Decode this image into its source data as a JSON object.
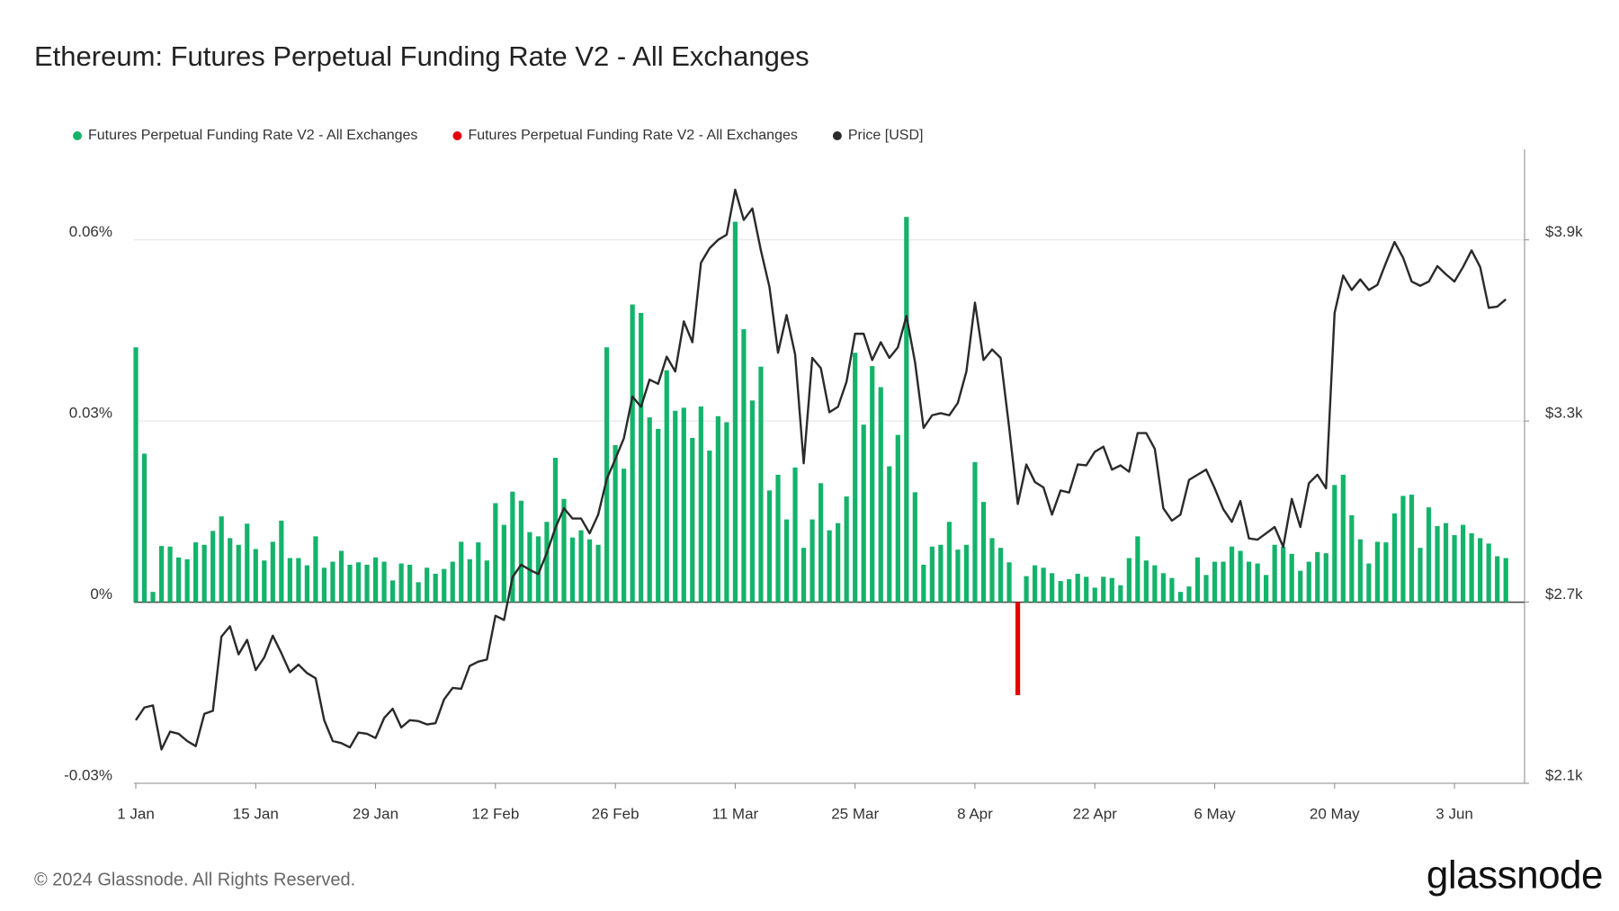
{
  "chart_data": {
    "type": "bar",
    "title": "Ethereum: Futures Perpetual Funding Rate V2 - All Exchanges",
    "categories": [
      "1 Jan",
      null,
      null,
      null,
      null,
      null,
      null,
      null,
      null,
      null,
      null,
      null,
      null,
      null,
      "15 Jan",
      null,
      null,
      null,
      null,
      null,
      null,
      null,
      null,
      null,
      null,
      null,
      null,
      null,
      "29 Jan",
      null,
      null,
      null,
      null,
      null,
      null,
      null,
      null,
      null,
      null,
      null,
      null,
      null,
      "12 Feb",
      null,
      null,
      null,
      null,
      null,
      null,
      null,
      null,
      null,
      null,
      null,
      null,
      null,
      "26 Feb",
      null,
      null,
      null,
      null,
      null,
      null,
      null,
      null,
      null,
      null,
      null,
      null,
      null,
      "11 Mar",
      null,
      null,
      null,
      null,
      null,
      null,
      null,
      null,
      null,
      null,
      null,
      null,
      null,
      "25 Mar",
      null,
      null,
      null,
      null,
      null,
      null,
      null,
      null,
      null,
      null,
      null,
      null,
      null,
      "8 Apr",
      null,
      null,
      null,
      null,
      null,
      null,
      null,
      null,
      null,
      null,
      null,
      null,
      null,
      "22 Apr",
      null,
      null,
      null,
      null,
      null,
      null,
      null,
      null,
      null,
      null,
      null,
      null,
      null,
      "6 May",
      null,
      null,
      null,
      null,
      null,
      null,
      null,
      null,
      null,
      null,
      null,
      null,
      null,
      "20 May",
      null,
      null,
      null,
      null,
      null,
      null,
      null,
      null,
      null,
      null,
      null,
      null,
      null,
      "3 Jun",
      null,
      null,
      null,
      null,
      null,
      null
    ],
    "series": [
      {
        "name": "Futures Perpetual Funding Rate V2 - All Exchanges",
        "color": "#14b36b",
        "values": [
          0.0422,
          0.0246,
          0.0017,
          0.0093,
          0.0092,
          0.0074,
          0.0071,
          0.0099,
          0.0095,
          0.0118,
          0.0142,
          0.0106,
          0.0095,
          0.013,
          0.0088,
          0.0069,
          0.01,
          0.0135,
          0.0073,
          0.0073,
          0.0061,
          0.0109,
          0.0057,
          0.0067,
          0.0085,
          0.0062,
          0.0066,
          0.0062,
          0.0074,
          0.0067,
          0.0036,
          0.0064,
          0.0062,
          0.0033,
          0.0057,
          0.0047,
          0.0055,
          0.0067,
          0.01,
          0.0071,
          0.0099,
          0.0069,
          0.0164,
          0.0128,
          0.0183,
          0.0168,
          0.0116,
          0.0109,
          0.0133,
          0.0239,
          0.0171,
          0.0107,
          0.0119,
          0.0104,
          0.0095,
          0.0422,
          0.026,
          0.0221,
          0.0493,
          0.0479,
          0.0306,
          0.0287,
          0.0384,
          0.0317,
          0.0322,
          0.0272,
          0.0324,
          0.0251,
          0.0308,
          0.0298,
          0.063,
          0.0452,
          0.0334,
          0.039,
          0.0185,
          0.0211,
          0.0137,
          0.0223,
          0.009,
          0.0137,
          0.0197,
          0.0119,
          0.0131,
          0.0175,
          0.0413,
          0.0294,
          0.0391,
          0.0356,
          0.0225,
          0.0277,
          0.0638,
          0.0182,
          0.0062,
          0.0092,
          0.0095,
          0.0133,
          0.0087,
          0.0095,
          0.0232,
          0.0166,
          0.0106,
          0.009,
          0.0066,
          null,
          0.0043,
          0.0061,
          0.0057,
          0.0048,
          0.0035,
          0.0038,
          0.0047,
          0.0042,
          0.0024,
          0.0042,
          0.004,
          0.0028,
          0.0073,
          0.0109,
          0.0069,
          0.0061,
          0.0048,
          0.004,
          0.0017,
          0.0026,
          0.0074,
          0.0045,
          0.0067,
          0.0067,
          0.0092,
          0.0085,
          0.0067,
          0.0064,
          0.0045,
          0.0095,
          0.0092,
          0.008,
          0.0052,
          0.0067,
          0.0083,
          0.0081,
          0.0194,
          0.0211,
          0.0144,
          0.0104,
          0.0064,
          0.01,
          0.0099,
          0.0147,
          0.0176,
          0.0178,
          0.009,
          0.0157,
          0.0126,
          0.0131,
          0.0111,
          0.0128,
          0.0114,
          0.0106,
          0.0097,
          0.0076,
          0.0073
        ]
      },
      {
        "name": "Futures Perpetual Funding Rate V2 - All Exchanges",
        "color": "#e3000b",
        "values": [
          null,
          null,
          null,
          null,
          null,
          null,
          null,
          null,
          null,
          null,
          null,
          null,
          null,
          null,
          null,
          null,
          null,
          null,
          null,
          null,
          null,
          null,
          null,
          null,
          null,
          null,
          null,
          null,
          null,
          null,
          null,
          null,
          null,
          null,
          null,
          null,
          null,
          null,
          null,
          null,
          null,
          null,
          null,
          null,
          null,
          null,
          null,
          null,
          null,
          null,
          null,
          null,
          null,
          null,
          null,
          null,
          null,
          null,
          null,
          null,
          null,
          null,
          null,
          null,
          null,
          null,
          null,
          null,
          null,
          null,
          null,
          null,
          null,
          null,
          null,
          null,
          null,
          null,
          null,
          null,
          null,
          null,
          null,
          null,
          null,
          null,
          null,
          null,
          null,
          null,
          null,
          null,
          null,
          null,
          null,
          null,
          null,
          null,
          null,
          null,
          null,
          null,
          null,
          -0.0154,
          null,
          null,
          null,
          null,
          null,
          null,
          null,
          null,
          null,
          null,
          null,
          null,
          null,
          null,
          null,
          null,
          null,
          null,
          null,
          null,
          null,
          null,
          null,
          null,
          null,
          null,
          null,
          null,
          null,
          null,
          null,
          null,
          null,
          null,
          null,
          null,
          null,
          null,
          null,
          null,
          null,
          null,
          null,
          null,
          null,
          null,
          null,
          null,
          null,
          null,
          null,
          null,
          null,
          null,
          null,
          null,
          null
        ]
      },
      {
        "name": "Price [USD]",
        "color": "#2a2a2a",
        "type": "line",
        "axis": "y2",
        "values": [
          2309,
          2351,
          2358,
          2212,
          2271,
          2264,
          2240,
          2223,
          2330,
          2340,
          2586,
          2620,
          2527,
          2575,
          2475,
          2517,
          2589,
          2531,
          2468,
          2493,
          2465,
          2448,
          2309,
          2240,
          2233,
          2219,
          2268,
          2264,
          2250,
          2316,
          2347,
          2285,
          2309,
          2306,
          2295,
          2299,
          2378,
          2416,
          2413,
          2489,
          2503,
          2510,
          2655,
          2641,
          2783,
          2824,
          2807,
          2793,
          2863,
          2946,
          3011,
          2977,
          2977,
          2928,
          2990,
          3108,
          3174,
          3243,
          3381,
          3347,
          3437,
          3423,
          3513,
          3464,
          3630,
          3561,
          3824,
          3872,
          3900,
          3917,
          4066,
          3966,
          4004,
          3865,
          3744,
          3526,
          3651,
          3520,
          3160,
          3509,
          3475,
          3329,
          3347,
          3430,
          3589,
          3589,
          3502,
          3561,
          3509,
          3544,
          3648,
          3495,
          3277,
          3319,
          3326,
          3319,
          3360,
          3464,
          3692,
          3502,
          3537,
          3509,
          3277,
          3025,
          3156,
          3098,
          3080,
          2990,
          3070,
          3063,
          3156,
          3153,
          3198,
          3215,
          3139,
          3153,
          3132,
          3260,
          3260,
          3208,
          3011,
          2970,
          2990,
          3105,
          3122,
          3139,
          3077,
          3008,
          2966,
          3035,
          2911,
          2907,
          2928,
          2949,
          2883,
          3042,
          2949,
          3094,
          3122,
          3077,
          3658,
          3782,
          3734,
          3769,
          3734,
          3751,
          3824,
          3893,
          3841,
          3762,
          3748,
          3762,
          3813,
          3786,
          3762,
          3810,
          3865,
          3810,
          3675,
          3679,
          3703
        ]
      }
    ],
    "ylim": [
      -0.03,
      0.075
    ],
    "yticks": [
      {
        "value": -0.03,
        "label": "-0.03%"
      },
      {
        "value": 0,
        "label": "0%"
      },
      {
        "value": 0.03,
        "label": "0.03%"
      },
      {
        "value": 0.06,
        "label": "0.06%"
      }
    ],
    "y2lim": [
      2100,
      4200
    ],
    "y2ticks": [
      {
        "value": 2100,
        "label": "$2.1k"
      },
      {
        "value": 2700,
        "label": "$2.7k"
      },
      {
        "value": 3300,
        "label": "$3.3k"
      },
      {
        "value": 3900,
        "label": "$3.9k"
      }
    ],
    "grid": true,
    "legend": "top-left"
  },
  "copyright": "© 2024 Glassnode. All Rights Reserved.",
  "brand": "glassnode"
}
